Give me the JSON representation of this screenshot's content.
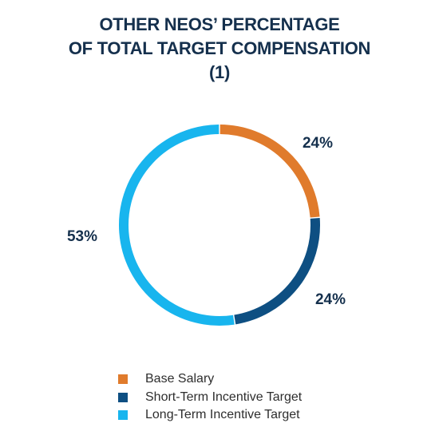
{
  "chart_data": {
    "type": "pie",
    "title_lines": [
      "OTHER NEOS’ PERCENTAGE",
      "OF TOTAL TARGET COMPENSATION",
      "(1)"
    ],
    "categories": [
      "Base Salary",
      "Short-Term Incentive Target",
      "Long-Term Incentive Target"
    ],
    "values": [
      24,
      24,
      53
    ],
    "labels": [
      "24%",
      "24%",
      "53%"
    ],
    "colors": [
      "#e07b2c",
      "#0e4f82",
      "#18b5ee"
    ],
    "donut": true,
    "legend_position": "bottom"
  }
}
